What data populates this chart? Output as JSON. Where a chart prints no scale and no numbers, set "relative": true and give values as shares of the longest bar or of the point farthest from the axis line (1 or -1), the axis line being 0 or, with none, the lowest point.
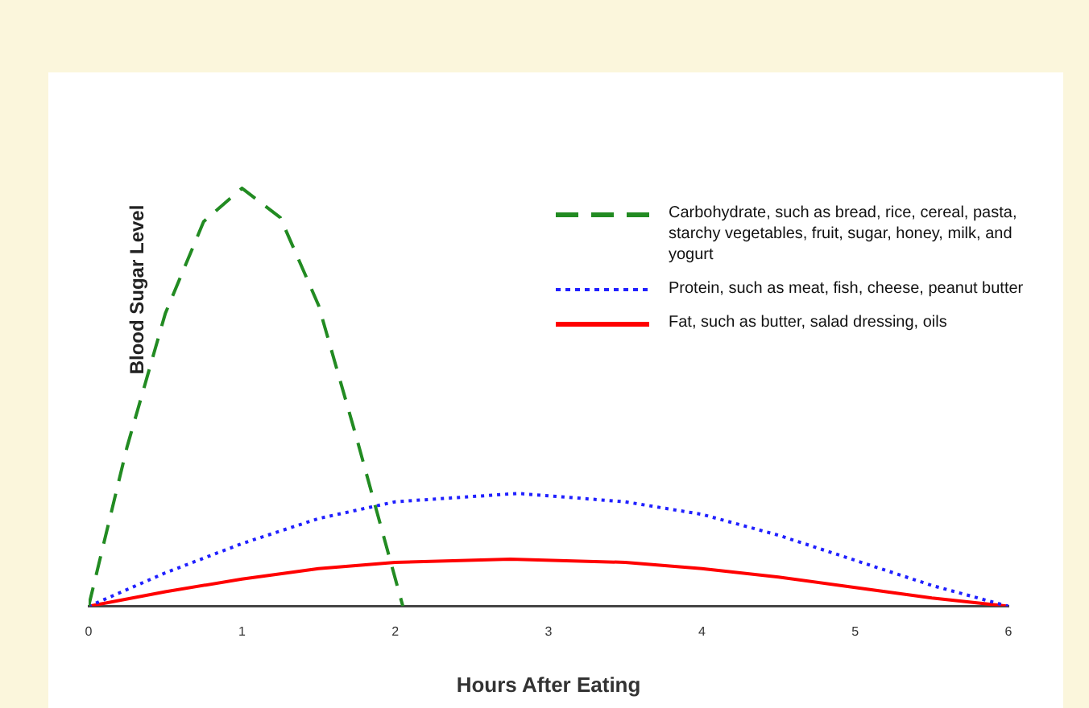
{
  "chart_data": {
    "type": "line",
    "relative": true,
    "xlabel": "Hours After Eating",
    "ylabel": "Blood Sugar Level",
    "xlim": [
      0,
      6
    ],
    "xticks": [
      0,
      1,
      2,
      3,
      4,
      5,
      6
    ],
    "grid": false,
    "legend": "top right",
    "marker": "none",
    "series": [
      {
        "name": "Carbohydrate, such as bread, rice, cereal, pasta, starchy vegetables, fruit, sugar, honey, milk, and yogurt",
        "color": "#228b22",
        "line_style": "dashed",
        "x": [
          0,
          0.25,
          0.5,
          0.75,
          1,
          1.25,
          1.5,
          1.75,
          2.05
        ],
        "values": [
          0,
          0.38,
          0.7,
          0.92,
          1,
          0.93,
          0.72,
          0.4,
          0
        ]
      },
      {
        "name": "Protein, such as meat, fish, cheese, peanut butter",
        "color": "#2020ff",
        "line_style": "dotted",
        "x": [
          0,
          0.5,
          1,
          1.5,
          2,
          2.8,
          3.5,
          4,
          4.5,
          5,
          5.5,
          6
        ],
        "values": [
          0,
          0.08,
          0.15,
          0.21,
          0.25,
          0.27,
          0.25,
          0.22,
          0.17,
          0.11,
          0.05,
          0
        ]
      },
      {
        "name": "Fat, such as butter, salad dressing, oils",
        "color": "#ff0000",
        "line_style": "solid",
        "x": [
          0,
          0.5,
          1,
          1.5,
          2,
          2.75,
          3.5,
          4,
          4.5,
          5,
          5.5,
          6
        ],
        "values": [
          0,
          0.035,
          0.065,
          0.09,
          0.105,
          0.113,
          0.105,
          0.09,
          0.07,
          0.045,
          0.02,
          0
        ]
      }
    ]
  }
}
